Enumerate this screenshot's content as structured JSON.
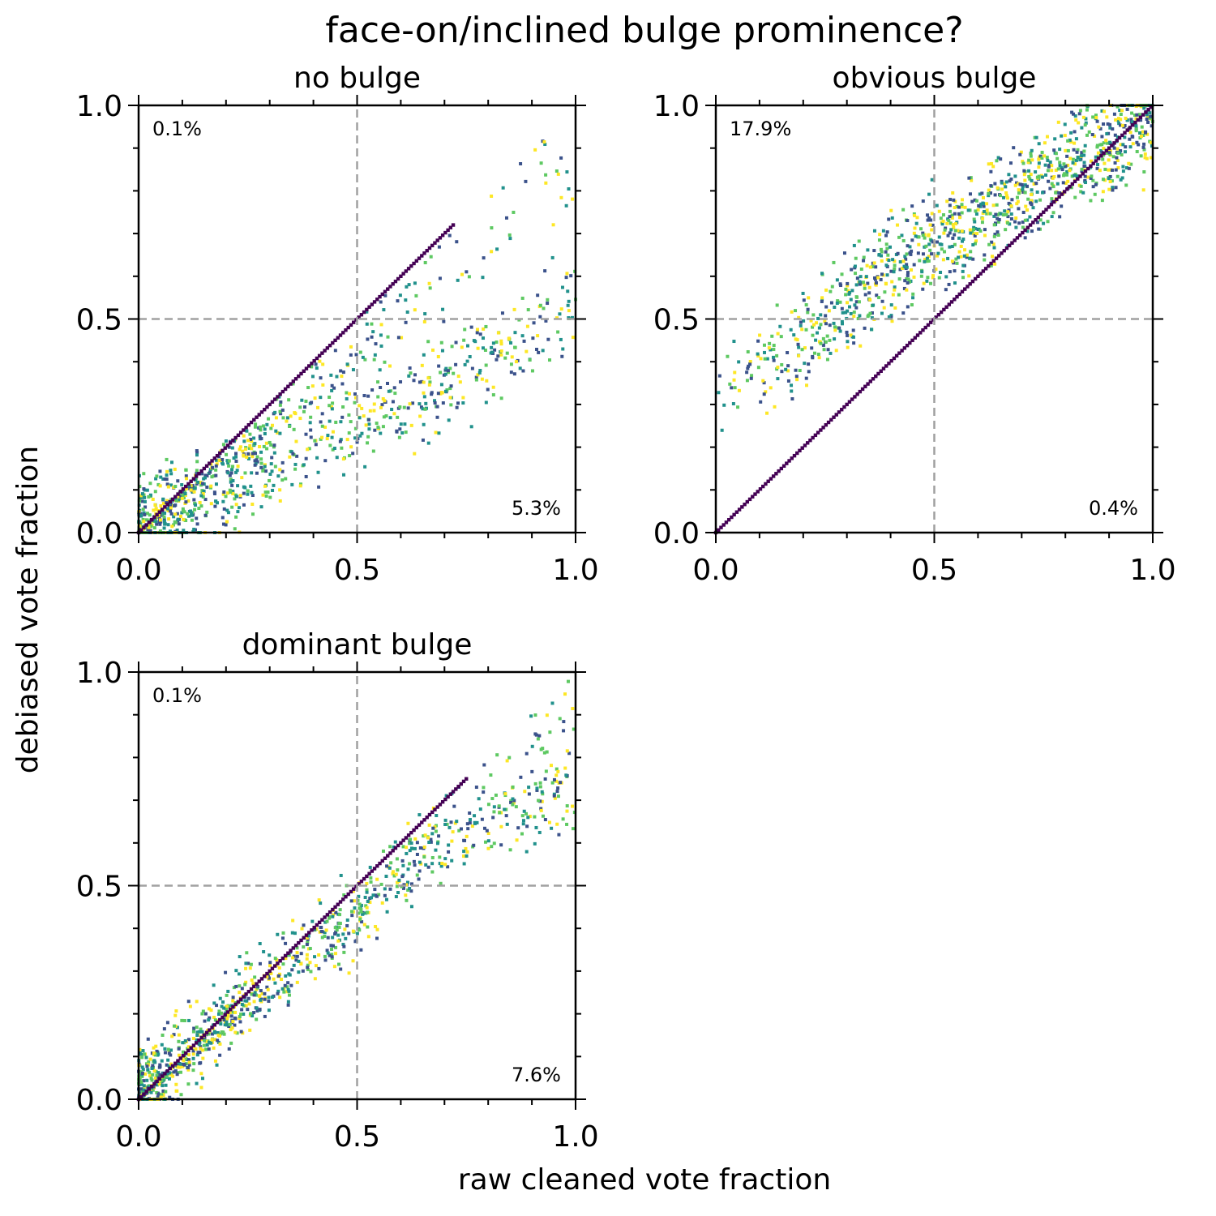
{
  "figure": {
    "title": "face-on/inclined bulge prominence?",
    "xlabel": "raw cleaned vote fraction",
    "ylabel": "debiased vote fraction"
  },
  "colors": {
    "guide": "#a0a0a0",
    "axis": "#000000",
    "viridis": [
      "#440154",
      "#3b528b",
      "#21918c",
      "#5ec962",
      "#fde725"
    ]
  },
  "chart_data": [
    {
      "type": "scatter",
      "title": "no bulge",
      "xlim": [
        0,
        1
      ],
      "ylim": [
        0,
        1
      ],
      "xticks": [
        "0.0",
        "0.5",
        "1.0"
      ],
      "yticks": [
        "0.0",
        "0.5",
        "1.0"
      ],
      "guides": {
        "x": 0.5,
        "y": 0.5
      },
      "pct_upper_left": "0.1%",
      "pct_lower_right": "5.3%",
      "trend": {
        "points": [
          [
            0.0,
            0.0
          ],
          [
            0.1,
            0.06
          ],
          [
            0.2,
            0.12
          ],
          [
            0.3,
            0.18
          ],
          [
            0.45,
            0.25
          ],
          [
            0.6,
            0.3
          ],
          [
            0.8,
            0.4
          ],
          [
            1.0,
            0.55
          ]
        ],
        "spread": 0.07
      },
      "identity_max": 0.72
    },
    {
      "type": "scatter",
      "title": "obvious bulge",
      "xlim": [
        0,
        1
      ],
      "ylim": [
        0,
        1
      ],
      "xticks": [
        "0.0",
        "0.5",
        "1.0"
      ],
      "yticks": [
        "0.0",
        "0.5",
        "1.0"
      ],
      "guides": {
        "x": 0.5,
        "y": 0.5
      },
      "pct_upper_left": "17.9%",
      "pct_lower_right": "0.4%",
      "trend": {
        "points": [
          [
            0.0,
            0.3
          ],
          [
            0.2,
            0.45
          ],
          [
            0.4,
            0.62
          ],
          [
            0.6,
            0.73
          ],
          [
            0.8,
            0.86
          ],
          [
            1.0,
            0.96
          ]
        ],
        "spread": 0.07
      },
      "identity_max": 1.0
    },
    {
      "type": "scatter",
      "title": "dominant bulge",
      "xlim": [
        0,
        1
      ],
      "ylim": [
        0,
        1
      ],
      "xticks": [
        "0.0",
        "0.5",
        "1.0"
      ],
      "yticks": [
        "0.0",
        "0.5",
        "1.0"
      ],
      "guides": {
        "x": 0.5,
        "y": 0.5
      },
      "pct_upper_left": "0.1%",
      "pct_lower_right": "7.6%",
      "trend": {
        "points": [
          [
            0.0,
            0.02
          ],
          [
            0.1,
            0.1
          ],
          [
            0.2,
            0.2
          ],
          [
            0.3,
            0.28
          ],
          [
            0.4,
            0.36
          ],
          [
            0.5,
            0.43
          ],
          [
            0.6,
            0.52
          ],
          [
            0.7,
            0.6
          ],
          [
            0.85,
            0.68
          ],
          [
            1.0,
            0.72
          ]
        ],
        "spread": 0.06
      },
      "identity_max": 0.75
    }
  ]
}
